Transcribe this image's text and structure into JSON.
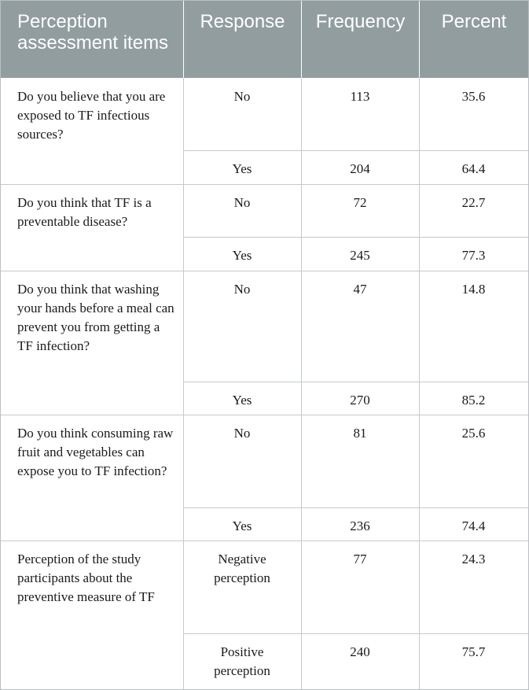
{
  "table": {
    "headers": [
      "Perception assessment items",
      "Response",
      "Frequency",
      "Percent"
    ],
    "groups": [
      {
        "item": "Do you believe that you are exposed to TF infectious sources?",
        "rows": [
          {
            "response": "No",
            "frequency": "113",
            "percent": "35.6"
          },
          {
            "response": "Yes",
            "frequency": "204",
            "percent": "64.4"
          }
        ]
      },
      {
        "item": "Do you think that TF is a preventable disease?",
        "rows": [
          {
            "response": "No",
            "frequency": "72",
            "percent": "22.7"
          },
          {
            "response": "Yes",
            "frequency": "245",
            "percent": "77.3"
          }
        ]
      },
      {
        "item": "Do you think that washing your hands before a meal can prevent you from getting a TF infection?",
        "rows": [
          {
            "response": "No",
            "frequency": "47",
            "percent": "14.8"
          },
          {
            "response": "Yes",
            "frequency": "270",
            "percent": "85.2"
          }
        ]
      },
      {
        "item": "Do you think consuming raw fruit and vegetables can expose you to TF infection?",
        "rows": [
          {
            "response": "No",
            "frequency": "81",
            "percent": "25.6"
          },
          {
            "response": "Yes",
            "frequency": "236",
            "percent": "74.4"
          }
        ]
      },
      {
        "item": "Perception of the study participants about the preventive measure of TF",
        "rows": [
          {
            "response": "Negative perception",
            "frequency": "77",
            "percent": "24.3"
          },
          {
            "response": "Positive perception",
            "frequency": "240",
            "percent": "75.7"
          }
        ]
      }
    ]
  }
}
